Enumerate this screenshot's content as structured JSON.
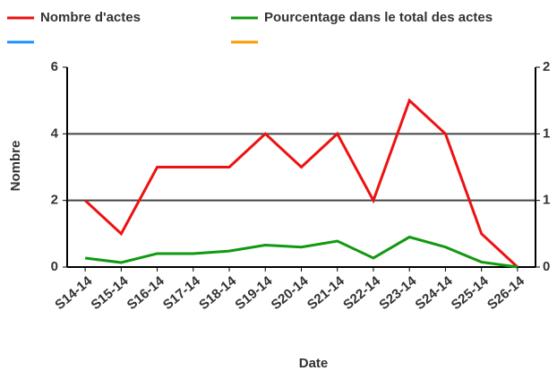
{
  "chart_data": {
    "type": "line",
    "categories": [
      "S14-14",
      "S15-14",
      "S16-14",
      "S17-14",
      "S18-14",
      "S19-14",
      "S20-14",
      "S21-14",
      "S22-14",
      "S23-14",
      "S24-14",
      "S25-14",
      "S26-14"
    ],
    "series": [
      {
        "name": "Nombre d'actes",
        "color": "#ee1111",
        "values": [
          2,
          1,
          3,
          3,
          3,
          4,
          3,
          4,
          2,
          5,
          4,
          1,
          0
        ]
      },
      {
        "name": "Pourcentage dans le total des actes",
        "color": "#119911",
        "axis": "y2",
        "values": [
          0.09,
          0.045,
          0.135,
          0.135,
          0.16,
          0.22,
          0.2,
          0.26,
          0.09,
          0.3,
          0.2,
          0.05,
          0
        ]
      },
      {
        "name": null,
        "color": "#1e90ff",
        "values": [
          null,
          null,
          null,
          null,
          null,
          null,
          null,
          null,
          null,
          null,
          null,
          null,
          null
        ]
      },
      {
        "name": null,
        "color": "#ff9900",
        "values": [
          null,
          null,
          null,
          null,
          null,
          null,
          null,
          null,
          null,
          null,
          null,
          null,
          null
        ]
      }
    ],
    "ylabel": "Nombre",
    "xlabel": "Date",
    "ylim": [
      0,
      6
    ],
    "yticks": [
      0,
      2,
      4,
      6
    ],
    "y2lim": [
      0,
      2
    ],
    "y2ticks": [
      0,
      {
        "value": 0.667,
        "label": "1"
      },
      {
        "value": 1.333,
        "label": "1"
      },
      2
    ],
    "grid": true
  }
}
